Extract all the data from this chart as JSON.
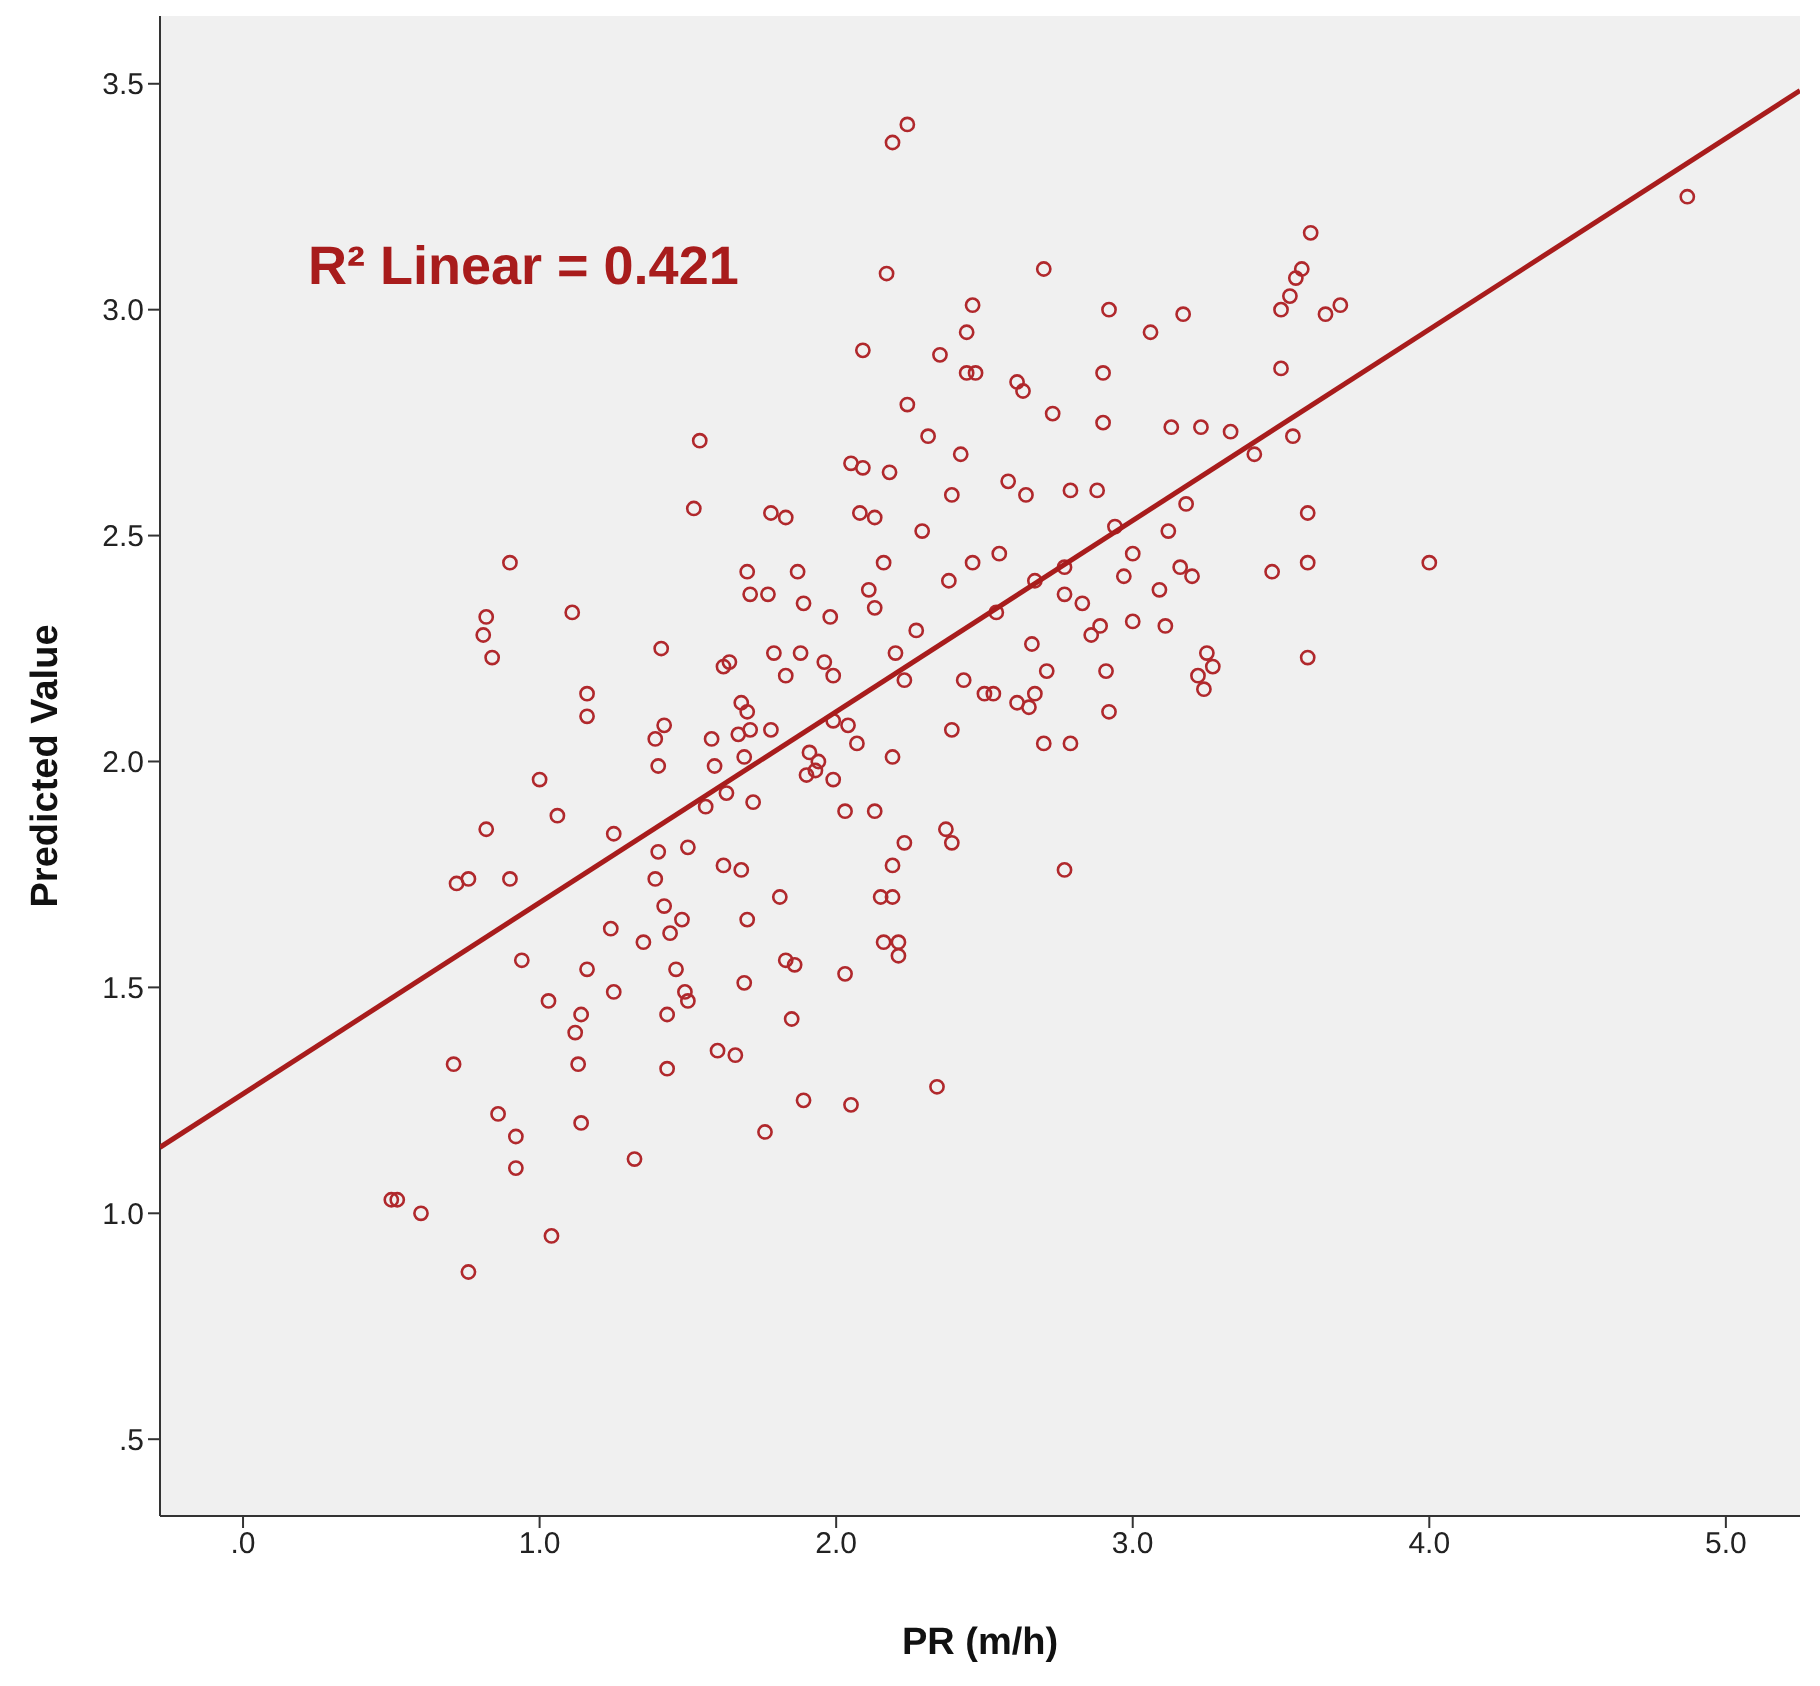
{
  "chart_data": {
    "type": "scatter",
    "xlabel": "PR (m/h)",
    "ylabel": "Predicted Value",
    "annotations": [
      "R² Linear = 0.421"
    ],
    "xlim": [
      -0.28,
      5.25
    ],
    "ylim": [
      0.33,
      3.65
    ],
    "xticks": [
      {
        "value": 0,
        "label": ".0"
      },
      {
        "value": 1,
        "label": "1.0"
      },
      {
        "value": 2,
        "label": "2.0"
      },
      {
        "value": 3,
        "label": "3.0"
      },
      {
        "value": 4,
        "label": "4.0"
      },
      {
        "value": 5,
        "label": "5.0"
      }
    ],
    "yticks": [
      {
        "value": 0.5,
        "label": ".5"
      },
      {
        "value": 1,
        "label": "1.0"
      },
      {
        "value": 1.5,
        "label": "1.5"
      },
      {
        "value": 2,
        "label": "2.0"
      },
      {
        "value": 2.5,
        "label": "2.5"
      },
      {
        "value": 3,
        "label": "3.0"
      },
      {
        "value": 3.5,
        "label": "3.5"
      }
    ],
    "grid": false,
    "marker": "circle",
    "series": [
      {
        "color": "#b0282c",
        "x": [
          0.5,
          0.52,
          0.6,
          0.76,
          1.04,
          0.71,
          0.86,
          0.92,
          0.92,
          1.32,
          0.72,
          0.76,
          0.82,
          0.9,
          0.94,
          0.82,
          0.81,
          0.84,
          0.9,
          1.0,
          1.06,
          1.11,
          1.16,
          1.16,
          1.03,
          1.12,
          1.13,
          1.14,
          1.14,
          1.16,
          1.24,
          1.25,
          1.25,
          1.35,
          1.4,
          1.4,
          1.39,
          1.42,
          1.41,
          1.39,
          1.42,
          1.44,
          1.43,
          1.43,
          1.46,
          1.48,
          1.49,
          1.5,
          1.5,
          1.52,
          1.54,
          1.56,
          1.58,
          1.59,
          1.6,
          1.66,
          1.62,
          1.64,
          1.62,
          1.63,
          1.67,
          1.69,
          1.71,
          1.7,
          1.68,
          1.7,
          1.71,
          1.72,
          1.68,
          1.7,
          1.69,
          1.76,
          1.78,
          1.77,
          1.78,
          1.83,
          1.79,
          1.83,
          1.81,
          1.83,
          1.86,
          1.85,
          1.89,
          1.87,
          1.89,
          1.88,
          1.91,
          1.9,
          1.93,
          1.94,
          1.96,
          1.98,
          1.99,
          1.99,
          1.99,
          2.03,
          2.04,
          2.07,
          2.03,
          2.05,
          2.05,
          2.09,
          2.09,
          2.08,
          2.11,
          2.13,
          2.13,
          2.16,
          2.17,
          2.19,
          2.24,
          2.19,
          2.13,
          2.15,
          2.16,
          2.19,
          2.19,
          2.21,
          2.23,
          2.21,
          2.24,
          2.18,
          2.2,
          2.23,
          2.27,
          2.29,
          2.31,
          2.35,
          2.34,
          2.39,
          2.39,
          2.37,
          2.39,
          2.38,
          2.42,
          2.44,
          2.46,
          2.44,
          2.47,
          2.43,
          2.46,
          2.5,
          2.53,
          2.54,
          2.55,
          2.58,
          2.61,
          2.63,
          2.61,
          2.65,
          2.67,
          2.64,
          2.67,
          2.66,
          2.71,
          2.7,
          2.79,
          2.77,
          2.7,
          2.73,
          2.77,
          2.77,
          2.79,
          2.83,
          2.86,
          2.89,
          2.88,
          2.9,
          2.91,
          2.92,
          2.9,
          2.92,
          2.94,
          2.97,
          3.0,
          3.0,
          3.06,
          3.09,
          3.11,
          3.12,
          3.16,
          3.13,
          3.17,
          3.18,
          3.2,
          3.23,
          3.22,
          3.24,
          3.25,
          3.27,
          3.33,
          3.41,
          3.47,
          3.5,
          3.5,
          3.53,
          3.55,
          3.57,
          3.6,
          3.7,
          3.65,
          3.54,
          3.59,
          3.59,
          3.59,
          4.0,
          4.87
        ],
        "values": [
          1.03,
          1.03,
          1.0,
          0.87,
          0.95,
          1.33,
          1.22,
          1.17,
          1.1,
          1.12,
          1.73,
          1.74,
          1.85,
          1.74,
          1.56,
          2.32,
          2.28,
          2.23,
          2.44,
          1.96,
          1.88,
          2.33,
          2.15,
          2.1,
          1.47,
          1.4,
          1.33,
          1.2,
          1.44,
          1.54,
          1.63,
          1.49,
          1.84,
          1.6,
          1.8,
          1.99,
          2.05,
          2.08,
          2.25,
          1.74,
          1.68,
          1.62,
          1.44,
          1.32,
          1.54,
          1.65,
          1.49,
          1.47,
          1.81,
          2.56,
          2.71,
          1.9,
          2.05,
          1.99,
          1.36,
          1.35,
          2.21,
          2.22,
          1.77,
          1.93,
          2.06,
          2.01,
          2.37,
          2.42,
          2.13,
          2.11,
          2.07,
          1.91,
          1.76,
          1.65,
          1.51,
          1.18,
          2.07,
          2.37,
          2.55,
          2.54,
          2.24,
          2.19,
          1.7,
          1.56,
          1.55,
          1.43,
          1.25,
          2.42,
          2.35,
          2.24,
          2.02,
          1.97,
          1.98,
          2.0,
          2.22,
          2.32,
          1.96,
          2.09,
          2.19,
          1.89,
          2.08,
          2.04,
          1.53,
          1.24,
          2.66,
          2.91,
          2.65,
          2.55,
          2.38,
          2.34,
          2.54,
          2.44,
          3.08,
          3.37,
          3.41,
          2.01,
          1.89,
          1.7,
          1.6,
          1.7,
          1.77,
          1.6,
          1.82,
          1.57,
          2.79,
          2.64,
          2.24,
          2.18,
          2.29,
          2.51,
          2.72,
          2.9,
          1.28,
          2.07,
          1.82,
          1.85,
          2.59,
          2.4,
          2.68,
          2.95,
          3.01,
          2.86,
          2.86,
          2.18,
          2.44,
          2.15,
          2.15,
          2.33,
          2.46,
          2.62,
          2.84,
          2.82,
          2.13,
          2.12,
          2.15,
          2.59,
          2.4,
          2.26,
          2.2,
          2.04,
          2.04,
          1.76,
          3.09,
          2.77,
          2.43,
          2.37,
          2.6,
          2.35,
          2.28,
          2.3,
          2.6,
          2.75,
          2.2,
          2.11,
          2.86,
          3.0,
          2.52,
          2.41,
          2.31,
          2.46,
          2.95,
          2.38,
          2.3,
          2.51,
          2.43,
          2.74,
          2.99,
          2.57,
          2.41,
          2.74,
          2.19,
          2.16,
          2.24,
          2.21,
          2.73,
          2.68,
          2.42,
          2.87,
          3.0,
          3.03,
          3.07,
          3.09,
          3.17,
          3.01,
          2.99,
          2.72,
          2.55,
          2.44,
          2.23,
          2.44,
          3.25
        ]
      },
      {
        "type": "line",
        "color": "#a81c1c",
        "marker": "none",
        "x": [
          -0.28,
          5.25
        ],
        "values": [
          1.146,
          3.485
        ]
      }
    ]
  }
}
